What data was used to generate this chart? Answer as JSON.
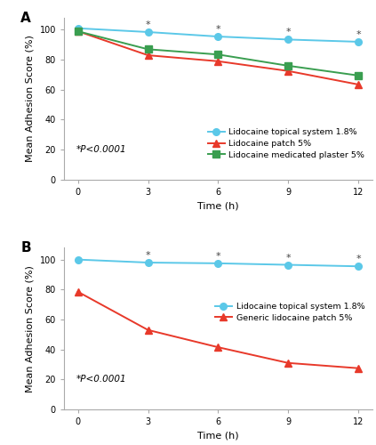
{
  "panel_A": {
    "time": [
      0,
      3,
      6,
      9,
      12
    ],
    "lidocaine_topical": [
      101,
      98.5,
      95.5,
      93.5,
      92
    ],
    "lidocaine_patch": [
      99,
      83,
      79,
      72.5,
      63.5
    ],
    "lidocaine_plaster": [
      99,
      87,
      83.5,
      76,
      69.5
    ],
    "topical_color": "#5BC8E8",
    "patch_color": "#E8392A",
    "plaster_color": "#3A9E50",
    "asterisk_times": [
      3,
      6,
      9,
      12
    ],
    "legend_labels": [
      "Lidocaine topical system 1.8%",
      "Lidocaine patch 5%",
      "Lidocaine medicated plaster 5%"
    ],
    "pvalue_text": "*P<0.0001",
    "panel_label": "A"
  },
  "panel_B": {
    "time": [
      0,
      3,
      6,
      9,
      12
    ],
    "lidocaine_topical": [
      100,
      98,
      97.5,
      96.5,
      95.5
    ],
    "generic_patch": [
      78.5,
      53,
      41.5,
      31,
      27.5
    ],
    "topical_color": "#5BC8E8",
    "patch_color": "#E8392A",
    "asterisk_times": [
      3,
      6,
      9,
      12
    ],
    "legend_labels": [
      "Lidocaine topical system 1.8%",
      "Generic lidocaine patch 5%"
    ],
    "pvalue_text": "*P<0.0001",
    "panel_label": "B"
  },
  "ylabel": "Mean Adhesion Score (%)",
  "xlabel": "Time (h)",
  "ylim": [
    0,
    108
  ],
  "yticks": [
    0,
    20,
    40,
    60,
    80,
    100
  ],
  "xticks": [
    0,
    3,
    6,
    9,
    12
  ],
  "background_color": "#FFFFFF"
}
